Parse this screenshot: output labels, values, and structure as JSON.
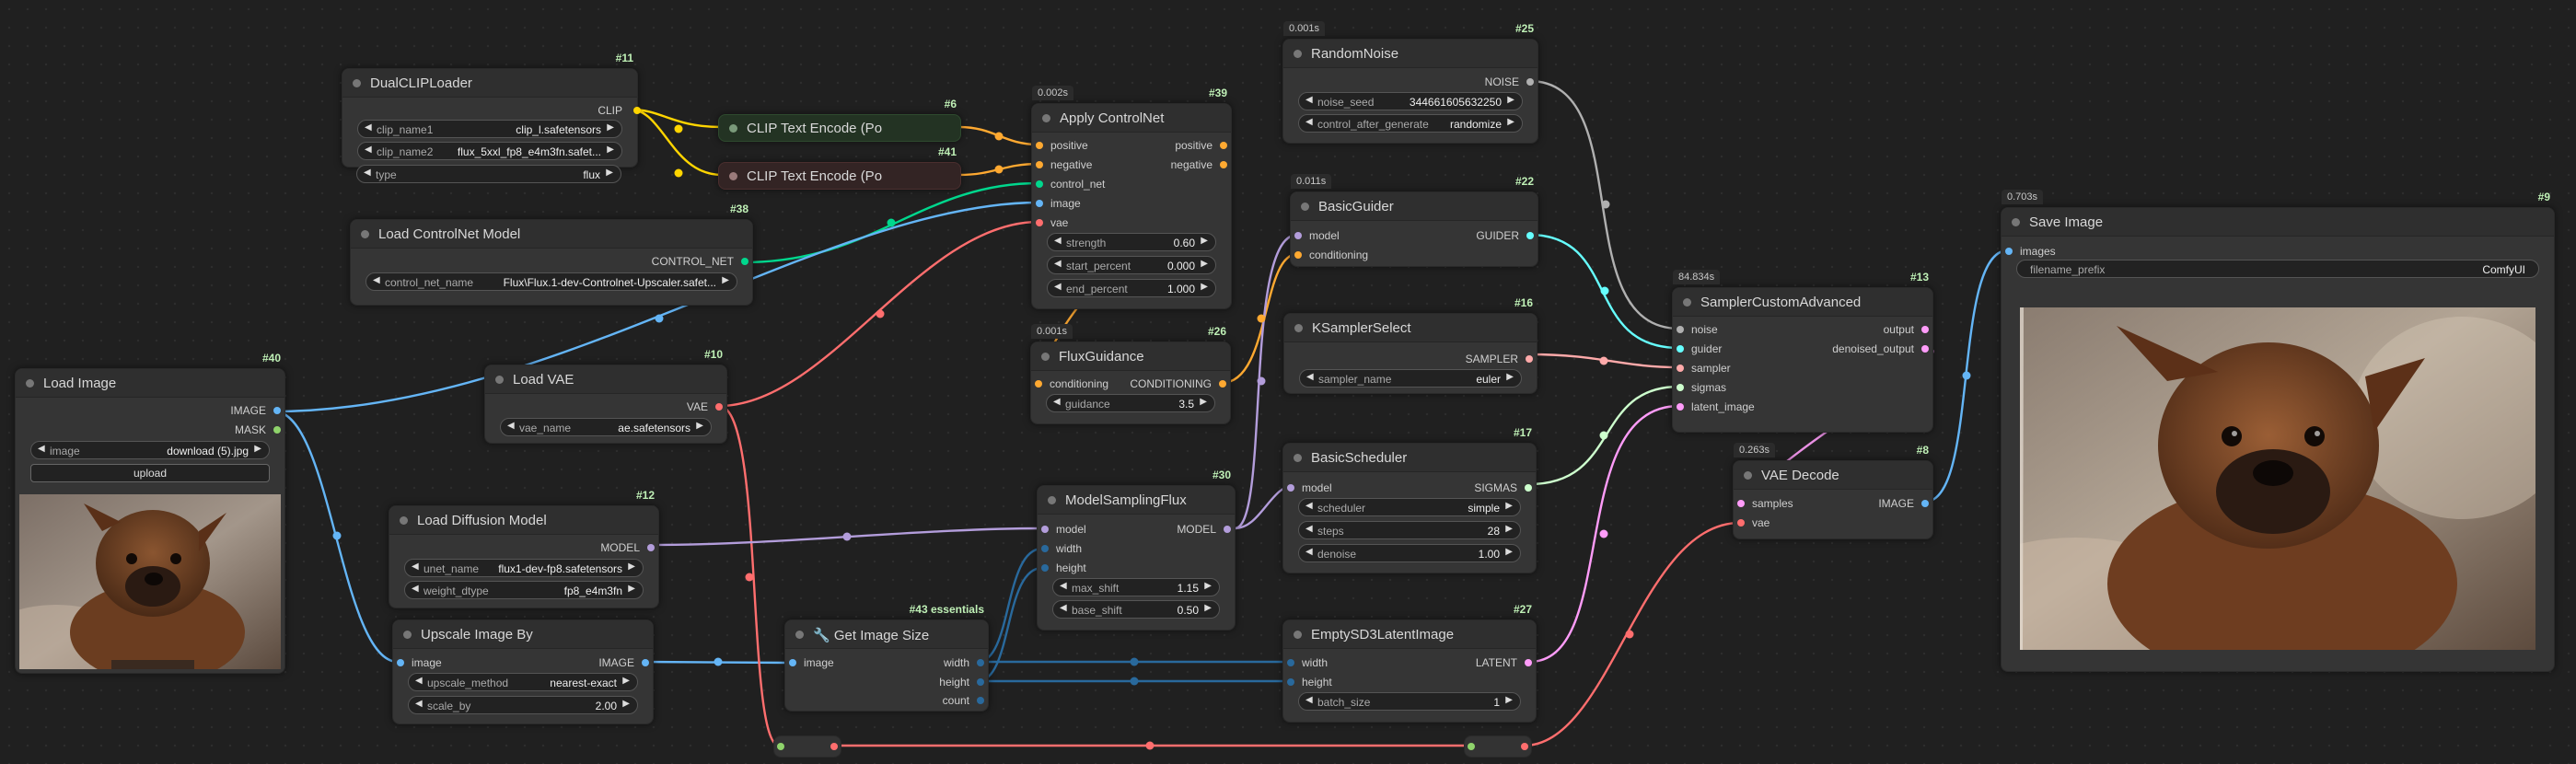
{
  "colors": {
    "background": "#202020",
    "node_body": "#353535",
    "node_header": "#2f2f2f",
    "id_badge": "#bff0b6",
    "wire_clip": "#ffd500",
    "wire_conditioning": "#ffa931",
    "wire_image": "#64b5f6",
    "wire_vae": "#ff6e6e",
    "wire_model": "#b39ddb",
    "wire_controlnet": "#00d78d",
    "wire_latent": "#ff9cf9",
    "wire_noise": "#b0b0b0",
    "wire_guider": "#66ffff",
    "wire_sampler": "#ffaaaa",
    "wire_sigmas": "#cdffcd",
    "wire_int": "#29699c"
  },
  "nodes": {
    "dualcliploader": {
      "id": "#11",
      "title": "DualCLIPLoader",
      "output_clip": "CLIP",
      "clip_name1_label": "clip_name1",
      "clip_name1": "clip_l.safetensors",
      "clip_name2_label": "clip_name2",
      "clip_name2": "flux_5xxl_fp8_e4m3fn.safet...",
      "type_label": "type",
      "type": "flux"
    },
    "clip_text_encode_pos": {
      "id": "#6",
      "title": "CLIP Text Encode (Po"
    },
    "clip_text_encode_neg": {
      "id": "#41",
      "title": "CLIP Text Encode (Po"
    },
    "apply_controlnet": {
      "id": "#39",
      "time": "0.002s",
      "title": "Apply ControlNet",
      "in_positive": "positive",
      "in_negative": "negative",
      "in_control_net": "control_net",
      "in_image": "image",
      "in_vae": "vae",
      "out_positive": "positive",
      "out_negative": "negative",
      "strength_label": "strength",
      "strength": "0.60",
      "start_percent_label": "start_percent",
      "start_percent": "0.000",
      "end_percent_label": "end_percent",
      "end_percent": "1.000"
    },
    "load_controlnet": {
      "id": "#38",
      "title": "Load ControlNet Model",
      "output": "CONTROL_NET",
      "name_label": "control_net_name",
      "name": "Flux\\Flux.1-dev-Controlnet-Upscaler.safet..."
    },
    "load_image": {
      "id": "#40",
      "title": "Load Image",
      "out_image": "IMAGE",
      "out_mask": "MASK",
      "image_label": "image",
      "image": "download (5).jpg",
      "upload": "upload"
    },
    "load_vae": {
      "id": "#10",
      "title": "Load VAE",
      "out_vae": "VAE",
      "vae_name_label": "vae_name",
      "vae_name": "ae.safetensors"
    },
    "load_diffusion": {
      "id": "#12",
      "title": "Load Diffusion Model",
      "out_model": "MODEL",
      "unet_label": "unet_name",
      "unet": "flux1-dev-fp8.safetensors",
      "dtype_label": "weight_dtype",
      "dtype": "fp8_e4m3fn"
    },
    "upscale_image_by": {
      "title": "Upscale Image By",
      "in_image": "image",
      "out_image": "IMAGE",
      "method_label": "upscale_method",
      "method": "nearest-exact",
      "scale_label": "scale_by",
      "scale": "2.00"
    },
    "get_image_size": {
      "id": "#43 essentials",
      "title": "🔧 Get Image Size",
      "in_image": "image",
      "out_width": "width",
      "out_height": "height",
      "out_count": "count"
    },
    "flux_guidance": {
      "id": "#26",
      "time": "0.001s",
      "title": "FluxGuidance",
      "in_conditioning": "conditioning",
      "out_conditioning": "CONDITIONING",
      "guidance_label": "guidance",
      "guidance": "3.5"
    },
    "model_sampling_flux": {
      "id": "#30",
      "title": "ModelSamplingFlux",
      "in_model": "model",
      "in_width": "width",
      "in_height": "height",
      "out_model": "MODEL",
      "max_shift_label": "max_shift",
      "max_shift": "1.15",
      "base_shift_label": "base_shift",
      "base_shift": "0.50"
    },
    "random_noise": {
      "id": "#25",
      "time": "0.001s",
      "title": "RandomNoise",
      "out_noise": "NOISE",
      "seed_label": "noise_seed",
      "seed": "344661605632250",
      "control_label": "control_after_generate",
      "control": "randomize"
    },
    "basic_guider": {
      "id": "#22",
      "time": "0.011s",
      "title": "BasicGuider",
      "in_model": "model",
      "in_conditioning": "conditioning",
      "out_guider": "GUIDER"
    },
    "ksampler_select": {
      "id": "#16",
      "title": "KSamplerSelect",
      "out_sampler": "SAMPLER",
      "sampler_label": "sampler_name",
      "sampler": "euler"
    },
    "basic_scheduler": {
      "id": "#17",
      "title": "BasicScheduler",
      "in_model": "model",
      "out_sigmas": "SIGMAS",
      "scheduler_label": "scheduler",
      "scheduler": "simple",
      "steps_label": "steps",
      "steps": "28",
      "denoise_label": "denoise",
      "denoise": "1.00"
    },
    "empty_latent": {
      "id": "#27",
      "title": "EmptySD3LatentImage",
      "in_width": "width",
      "in_height": "height",
      "out_latent": "LATENT",
      "batch_label": "batch_size",
      "batch": "1"
    },
    "sampler_custom_advanced": {
      "id": "#13",
      "time": "84.834s",
      "title": "SamplerCustomAdvanced",
      "in_noise": "noise",
      "in_guider": "guider",
      "in_sampler": "sampler",
      "in_sigmas": "sigmas",
      "in_latent": "latent_image",
      "out_output": "output",
      "out_denoised": "denoised_output"
    },
    "vae_decode": {
      "id": "#8",
      "time": "0.263s",
      "title": "VAE Decode",
      "in_samples": "samples",
      "in_vae": "vae",
      "out_image": "IMAGE"
    },
    "save_image": {
      "id": "#9",
      "time": "0.703s",
      "title": "Save Image",
      "in_images": "images",
      "prefix_label": "filename_prefix",
      "prefix": "ComfyUI"
    }
  }
}
